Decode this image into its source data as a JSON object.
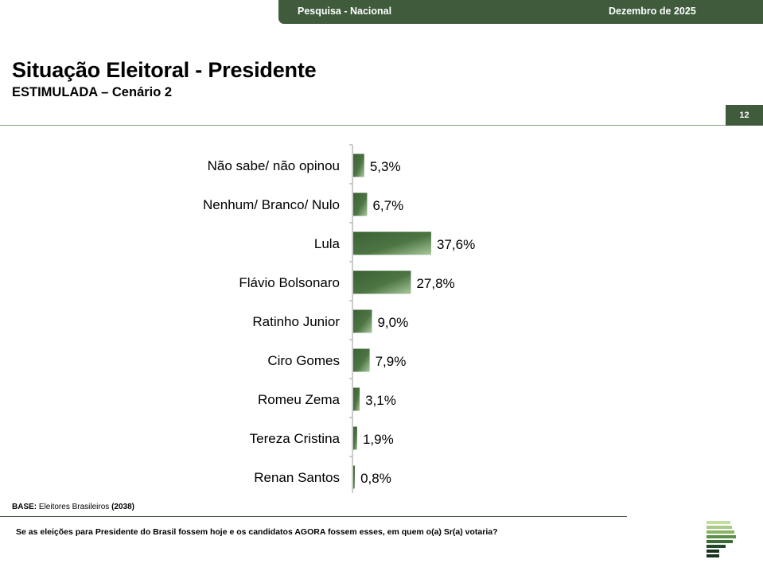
{
  "header": {
    "left_label": "Pesquisa - Nacional",
    "right_label": "Dezembro de 2025"
  },
  "page": {
    "title": "Situação Eleitoral - Presidente",
    "subtitle": "ESTIMULADA – Cenário 2",
    "page_number": "12"
  },
  "footer": {
    "base_label": "BASE:",
    "base_text": "Eleitores Brasileiros",
    "base_count": "(2038)",
    "question": "Se as eleições para Presidente do Brasil fossem hoje e os candidatos AGORA fossem esses, em quem o(a) Sr(a) votaria?"
  },
  "colors": {
    "brand_green": "#3f5b3c",
    "bar_dark": "#3c6235",
    "bar_light": "#a9c99c",
    "logo_greens": [
      "#c5dca0",
      "#a8cc84",
      "#85b466",
      "#5c8f48",
      "#3c6b35",
      "#24482a",
      "#1a3320"
    ]
  },
  "chart_data": {
    "type": "bar",
    "orientation": "horizontal",
    "categories": [
      "Não sabe/ não opinou",
      "Nenhum/ Branco/ Nulo",
      "Lula",
      "Flávio Bolsonaro",
      "Ratinho Junior",
      "Ciro Gomes",
      "Romeu Zema",
      "Tereza Cristina",
      "Renan Santos"
    ],
    "values": [
      5.3,
      6.7,
      37.6,
      27.8,
      9.0,
      7.9,
      3.1,
      1.9,
      0.8
    ],
    "value_labels": [
      "5,3%",
      "6,7%",
      "37,6%",
      "27,8%",
      "9,0%",
      "7,9%",
      "3,1%",
      "1,9%",
      "0,8%"
    ],
    "unit": "%",
    "xlim": [
      0,
      100
    ]
  }
}
